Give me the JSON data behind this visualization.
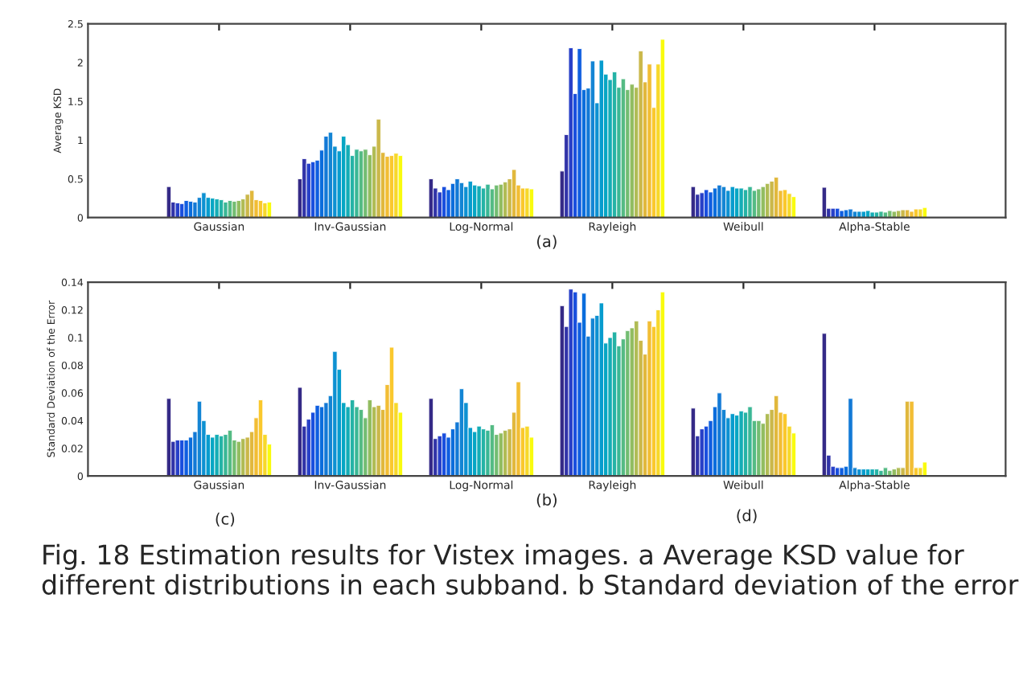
{
  "chart_data": [
    {
      "type": "bar",
      "categories": [
        "Gaussian",
        "Inv-Gaussian",
        "Log-Normal",
        "Rayleigh",
        "Weibull",
        "Alpha-Stable"
      ],
      "ylabel": "Average KSD",
      "xlabel": "(a)",
      "ylim": [
        0,
        2.5
      ],
      "yticks": [
        0,
        0.5,
        1,
        1.5,
        2,
        2.5
      ],
      "series": [
        {
          "color": "#352a87",
          "values": [
            0.4,
            0.5,
            0.5,
            0.6,
            0.4,
            0.39
          ]
        },
        {
          "color": "#3133a8",
          "values": [
            0.2,
            0.76,
            0.38,
            1.07,
            0.3,
            0.12
          ]
        },
        {
          "color": "#2840c8",
          "values": [
            0.19,
            0.7,
            0.33,
            2.19,
            0.32,
            0.12
          ]
        },
        {
          "color": "#1a4fde",
          "values": [
            0.18,
            0.72,
            0.4,
            1.6,
            0.36,
            0.12
          ]
        },
        {
          "color": "#0f5ee0",
          "values": [
            0.22,
            0.74,
            0.36,
            2.18,
            0.33,
            0.09
          ]
        },
        {
          "color": "#0b6ddc",
          "values": [
            0.21,
            0.87,
            0.44,
            1.65,
            0.38,
            0.1
          ]
        },
        {
          "color": "#1279d6",
          "values": [
            0.2,
            1.05,
            0.5,
            1.67,
            0.42,
            0.11
          ]
        },
        {
          "color": "#1485d4",
          "values": [
            0.26,
            1.1,
            0.45,
            2.02,
            0.4,
            0.08
          ]
        },
        {
          "color": "#0d91d2",
          "values": [
            0.32,
            0.92,
            0.4,
            1.48,
            0.35,
            0.08
          ]
        },
        {
          "color": "#079cce",
          "values": [
            0.26,
            0.86,
            0.47,
            2.03,
            0.4,
            0.08
          ]
        },
        {
          "color": "#06a6c4",
          "values": [
            0.25,
            1.05,
            0.42,
            1.85,
            0.38,
            0.09
          ]
        },
        {
          "color": "#14adb6",
          "values": [
            0.24,
            0.94,
            0.41,
            1.78,
            0.38,
            0.07
          ]
        },
        {
          "color": "#25b3a6",
          "values": [
            0.23,
            0.8,
            0.38,
            1.88,
            0.36,
            0.07
          ]
        },
        {
          "color": "#3ab795",
          "values": [
            0.2,
            0.88,
            0.43,
            1.68,
            0.4,
            0.08
          ]
        },
        {
          "color": "#55bb84",
          "values": [
            0.22,
            0.86,
            0.37,
            1.79,
            0.35,
            0.07
          ]
        },
        {
          "color": "#73bd72",
          "values": [
            0.21,
            0.88,
            0.42,
            1.65,
            0.37,
            0.09
          ]
        },
        {
          "color": "#92bd61",
          "values": [
            0.22,
            0.81,
            0.43,
            1.72,
            0.4,
            0.08
          ]
        },
        {
          "color": "#b0bc55",
          "values": [
            0.24,
            0.92,
            0.46,
            1.68,
            0.44,
            0.09
          ]
        },
        {
          "color": "#cbb84a",
          "values": [
            0.3,
            1.27,
            0.5,
            2.15,
            0.47,
            0.1
          ]
        },
        {
          "color": "#e1b83d",
          "values": [
            0.35,
            0.84,
            0.62,
            1.75,
            0.52,
            0.1
          ]
        },
        {
          "color": "#f2bd34",
          "values": [
            0.23,
            0.79,
            0.42,
            1.98,
            0.35,
            0.08
          ]
        },
        {
          "color": "#fac82d",
          "values": [
            0.22,
            0.8,
            0.38,
            1.42,
            0.36,
            0.11
          ]
        },
        {
          "color": "#f7d82a",
          "values": [
            0.19,
            0.83,
            0.38,
            1.98,
            0.31,
            0.11
          ]
        },
        {
          "color": "#f9fb0e",
          "values": [
            0.2,
            0.8,
            0.37,
            2.3,
            0.27,
            0.13
          ]
        }
      ]
    },
    {
      "type": "bar",
      "categories": [
        "Gaussian",
        "Inv-Gaussian",
        "Log-Normal",
        "Rayleigh",
        "Weibull",
        "Alpha-Stable"
      ],
      "ylabel": "Standard Deviation of the Error",
      "xlabel": "(b)",
      "ylim": [
        0,
        0.14
      ],
      "yticks": [
        0,
        0.02,
        0.04,
        0.06,
        0.08,
        0.1,
        0.12,
        0.14
      ],
      "annotations": [
        "(c)",
        "(d)",
        "Fig. 18 Estimation results for Vistex images. a Average KSD value for different distributions in each subband. b Standard deviation of the error"
      ],
      "series": [
        {
          "color": "#352a87",
          "values": [
            0.056,
            0.064,
            0.056,
            0.123,
            0.049,
            0.103
          ]
        },
        {
          "color": "#3133a8",
          "values": [
            0.025,
            0.036,
            0.027,
            0.108,
            0.029,
            0.015
          ]
        },
        {
          "color": "#2840c8",
          "values": [
            0.026,
            0.041,
            0.029,
            0.135,
            0.034,
            0.007
          ]
        },
        {
          "color": "#1a4fde",
          "values": [
            0.026,
            0.046,
            0.031,
            0.133,
            0.036,
            0.006
          ]
        },
        {
          "color": "#0f5ee0",
          "values": [
            0.026,
            0.051,
            0.028,
            0.111,
            0.04,
            0.006
          ]
        },
        {
          "color": "#0b6ddc",
          "values": [
            0.028,
            0.05,
            0.034,
            0.132,
            0.05,
            0.007
          ]
        },
        {
          "color": "#1279d6",
          "values": [
            0.032,
            0.053,
            0.039,
            0.101,
            0.06,
            0.056
          ]
        },
        {
          "color": "#1485d4",
          "values": [
            0.054,
            0.058,
            0.063,
            0.114,
            0.048,
            0.006
          ]
        },
        {
          "color": "#0d91d2",
          "values": [
            0.04,
            0.09,
            0.053,
            0.116,
            0.042,
            0.005
          ]
        },
        {
          "color": "#079cce",
          "values": [
            0.03,
            0.077,
            0.035,
            0.125,
            0.045,
            0.005
          ]
        },
        {
          "color": "#06a6c4",
          "values": [
            0.028,
            0.053,
            0.032,
            0.096,
            0.044,
            0.005
          ]
        },
        {
          "color": "#14adb6",
          "values": [
            0.03,
            0.05,
            0.036,
            0.1,
            0.047,
            0.005
          ]
        },
        {
          "color": "#25b3a6",
          "values": [
            0.029,
            0.055,
            0.034,
            0.104,
            0.046,
            0.005
          ]
        },
        {
          "color": "#3ab795",
          "values": [
            0.03,
            0.05,
            0.033,
            0.094,
            0.05,
            0.004
          ]
        },
        {
          "color": "#55bb84",
          "values": [
            0.033,
            0.048,
            0.037,
            0.099,
            0.04,
            0.006
          ]
        },
        {
          "color": "#73bd72",
          "values": [
            0.026,
            0.042,
            0.03,
            0.105,
            0.04,
            0.004
          ]
        },
        {
          "color": "#92bd61",
          "values": [
            0.025,
            0.055,
            0.031,
            0.107,
            0.038,
            0.005
          ]
        },
        {
          "color": "#b0bc55",
          "values": [
            0.027,
            0.05,
            0.033,
            0.112,
            0.045,
            0.006
          ]
        },
        {
          "color": "#cbb84a",
          "values": [
            0.028,
            0.051,
            0.034,
            0.098,
            0.048,
            0.006
          ]
        },
        {
          "color": "#e1b83d",
          "values": [
            0.032,
            0.048,
            0.046,
            0.088,
            0.058,
            0.054
          ]
        },
        {
          "color": "#f2bd34",
          "values": [
            0.042,
            0.066,
            0.068,
            0.112,
            0.046,
            0.054
          ]
        },
        {
          "color": "#fac82d",
          "values": [
            0.055,
            0.093,
            0.035,
            0.108,
            0.045,
            0.006
          ]
        },
        {
          "color": "#f7d82a",
          "values": [
            0.03,
            0.053,
            0.036,
            0.12,
            0.036,
            0.006
          ]
        },
        {
          "color": "#f9fb0e",
          "values": [
            0.023,
            0.046,
            0.028,
            0.133,
            0.031,
            0.01
          ]
        }
      ]
    }
  ]
}
